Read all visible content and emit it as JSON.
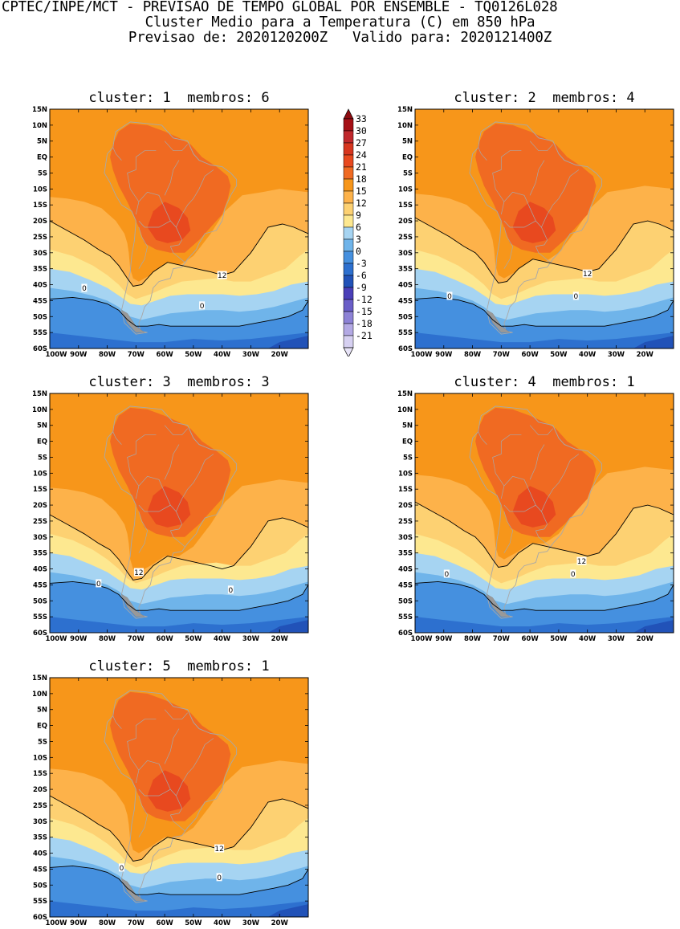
{
  "header": {
    "line1": "CPTEC/INPE/MCT - PREVISAO DE TEMPO GLOBAL POR ENSEMBLE - TQ0126L028",
    "line2": "Cluster Medio para a Temperatura (C) em 850 hPa",
    "line3": "Previsao de: 2020120200Z   Valido para: 2020121400Z"
  },
  "panels": [
    {
      "title": "cluster: 1  membros: 6"
    },
    {
      "title": "cluster: 2  membros: 4"
    },
    {
      "title": "cluster: 3  membros: 3"
    },
    {
      "title": "cluster: 4  membros: 1"
    },
    {
      "title": "cluster: 5  membros: 1"
    }
  ],
  "lat_labels": [
    "15N",
    "10N",
    "5N",
    "EQ",
    "5S",
    "10S",
    "15S",
    "20S",
    "25S",
    "30S",
    "35S",
    "40S",
    "45S",
    "50S",
    "55S",
    "60S"
  ],
  "lon_labels": [
    "100W",
    "90W",
    "80W",
    "70W",
    "60W",
    "50W",
    "40W",
    "30W",
    "20W"
  ],
  "contour_labels": {
    "twelve": "12",
    "zero": "0"
  },
  "colorbar": {
    "labels": [
      "33",
      "30",
      "27",
      "24",
      "21",
      "18",
      "15",
      "12",
      "9",
      "6",
      "3",
      "0",
      "-3",
      "-6",
      "-9",
      "-12",
      "-15",
      "-18",
      "-21"
    ],
    "colors": [
      "#a50f15",
      "#c0282c",
      "#d7361f",
      "#e8491f",
      "#f06a22",
      "#f7961a",
      "#fdb24a",
      "#fdd172",
      "#fde890",
      "#a6d4f2",
      "#6fb4ea",
      "#4590df",
      "#2d70cf",
      "#2152b8",
      "#4a3fb8",
      "#6a5ec8",
      "#8d82d6",
      "#b3a9e4",
      "#d6d0f1"
    ],
    "cap_high": "#8e0b10",
    "cap_low": "#e8e4f8"
  }
}
